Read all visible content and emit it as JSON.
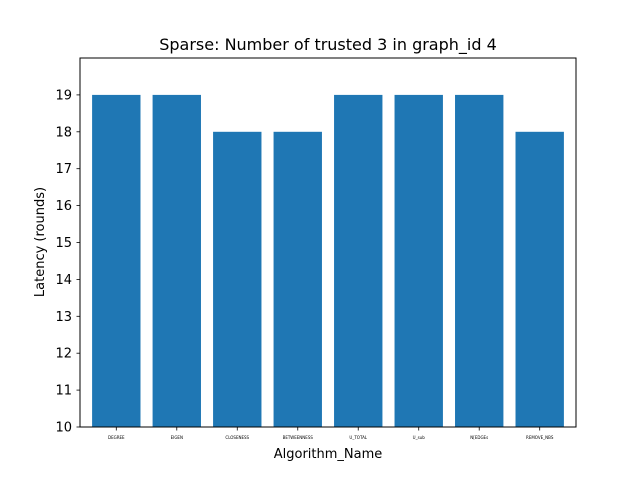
{
  "chart_data": {
    "type": "bar",
    "title": "Sparse: Number of trusted 3 in graph_id 4",
    "xlabel": "Algorithm_Name",
    "ylabel": "Latency (rounds)",
    "categories": [
      "DEGREE",
      "EIGEN",
      "CLOSENESS",
      "BETWEENNESS",
      "U_TOTAL",
      "U_sub",
      "N[EDGEs",
      "REMOVE_NBS"
    ],
    "values": [
      19,
      19,
      18,
      18,
      19,
      19,
      19,
      18
    ],
    "ylim": [
      10,
      20
    ],
    "yticks": [
      10,
      11,
      12,
      13,
      14,
      15,
      16,
      17,
      18,
      19
    ],
    "bar_color": "#1f77b4",
    "grid": false,
    "legend": "none"
  }
}
